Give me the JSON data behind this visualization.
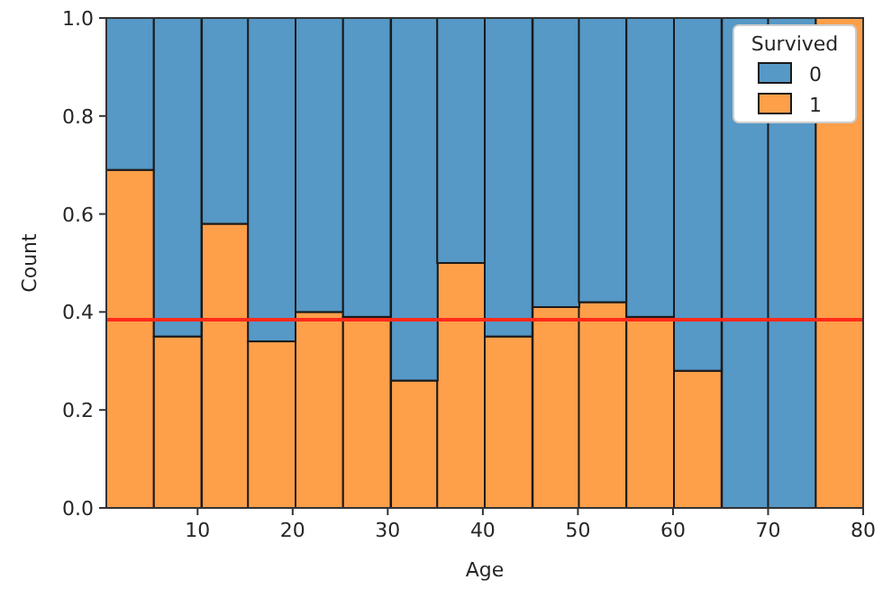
{
  "chart_data": {
    "type": "bar",
    "xlabel": "Age",
    "ylabel": "Count",
    "legend_title": "Survived",
    "legend": "top right",
    "stacked": true,
    "x": [
      2.9,
      7.9,
      12.9,
      17.8,
      22.8,
      27.8,
      32.8,
      37.7,
      42.7,
      47.7,
      52.6,
      57.6,
      62.6,
      67.6,
      72.5,
      77.5
    ],
    "series": [
      {
        "name": "1",
        "color": "#fe9f4a",
        "values": [
          0.69,
          0.35,
          0.58,
          0.34,
          0.4,
          0.39,
          0.26,
          0.5,
          0.35,
          0.41,
          0.42,
          0.39,
          0.28,
          0,
          0,
          1
        ]
      },
      {
        "name": "0",
        "color": "#5698c6",
        "values": [
          0.31,
          0.65,
          0.42,
          0.66,
          0.6,
          0.61,
          0.74,
          0.5,
          0.65,
          0.59,
          0.58,
          0.61,
          0.72,
          1,
          1,
          0
        ]
      }
    ],
    "xlim": [
      0.4,
      80
    ],
    "xticks": [
      10,
      20,
      30,
      40,
      50,
      60,
      70,
      80
    ],
    "ylim": [
      0,
      1
    ],
    "yticks": [
      {
        "value": 0,
        "label": "0.0"
      },
      {
        "value": 0.2,
        "label": "0.2"
      },
      {
        "value": 0.4,
        "label": "0.4"
      },
      {
        "value": 0.6,
        "label": "0.6"
      },
      {
        "value": 0.8,
        "label": "0.8"
      },
      {
        "value": 1,
        "label": "1.0"
      }
    ],
    "ref_lines": [
      {
        "axis": "y",
        "value": 0.384,
        "color": "#ff2a1a"
      }
    ]
  }
}
